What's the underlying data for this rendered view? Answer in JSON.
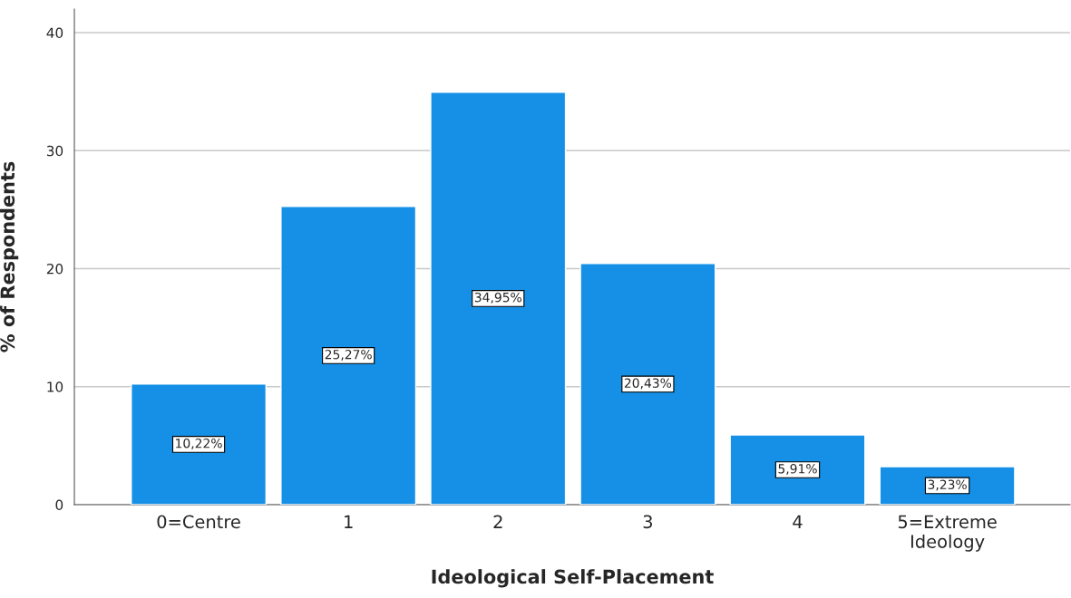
{
  "chart_data": {
    "type": "bar",
    "xlabel": "Ideological Self-Placement",
    "ylabel": "% of Respondents",
    "categories": [
      "0=Centre",
      "1",
      "2",
      "3",
      "4",
      "5=Extreme\nIdeology"
    ],
    "values": [
      10.22,
      25.27,
      34.95,
      20.43,
      5.91,
      3.23
    ],
    "value_labels": [
      "10,22%",
      "25,27%",
      "34,95%",
      "20,43%",
      "5,91%",
      "3,23%"
    ],
    "color": "#1590e6",
    "ylim": [
      0,
      42
    ],
    "yticks": [
      0,
      10,
      20,
      30,
      40
    ],
    "grid": "y"
  }
}
